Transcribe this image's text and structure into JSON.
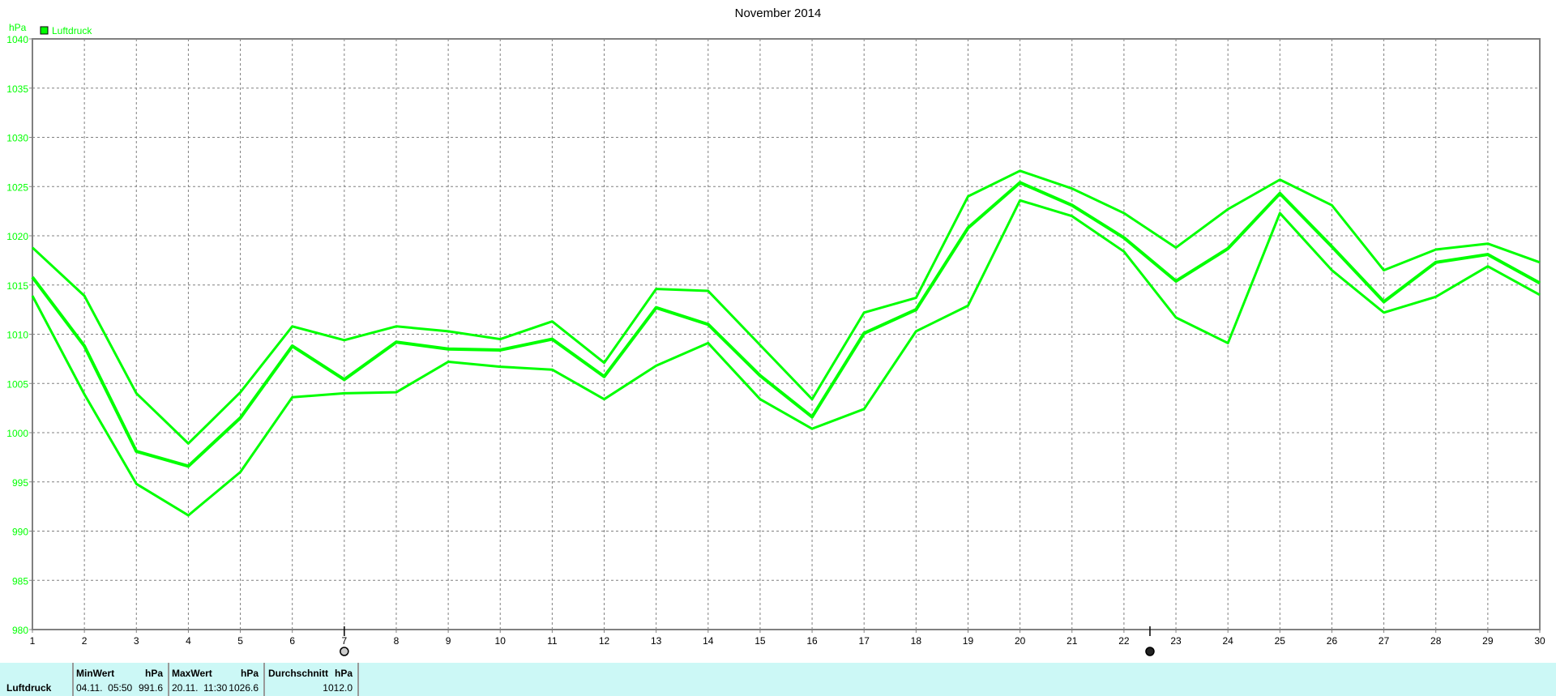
{
  "chart_data": {
    "type": "line",
    "title": "November 2014",
    "ylabel": "hPa",
    "ylim": [
      980,
      1040
    ],
    "yticks": [
      980,
      985,
      990,
      995,
      1000,
      1005,
      1010,
      1015,
      1020,
      1025,
      1030,
      1035,
      1040
    ],
    "x": [
      1,
      2,
      3,
      4,
      5,
      6,
      7,
      8,
      9,
      10,
      11,
      12,
      13,
      14,
      15,
      16,
      17,
      18,
      19,
      20,
      21,
      22,
      23,
      24,
      25,
      26,
      27,
      28,
      29,
      30
    ],
    "xlim": [
      1,
      30
    ],
    "grid": true,
    "legend": {
      "placement": "top-left",
      "entries": [
        "Luftdruck"
      ]
    },
    "color": "#00ff00",
    "series": [
      {
        "values": [
          1018.8,
          1013.9,
          1004.0,
          998.9,
          1004.1,
          1010.8,
          1009.4,
          1010.8,
          1010.3,
          1009.5,
          1011.3,
          1007.1,
          1014.6,
          1014.4,
          1008.9,
          1003.4,
          1012.2,
          1013.7,
          1024.0,
          1026.6,
          1024.8,
          1022.3,
          1018.8,
          1022.7,
          1025.7,
          1023.1,
          1016.5,
          1018.6,
          1019.2,
          1017.3
        ]
      },
      {
        "values": [
          1015.8,
          1008.8,
          998.1,
          996.6,
          1001.5,
          1008.8,
          1005.4,
          1009.2,
          1008.5,
          1008.4,
          1009.5,
          1005.7,
          1012.7,
          1011.0,
          1005.8,
          1001.6,
          1010.1,
          1012.5,
          1020.8,
          1025.4,
          1023.1,
          1019.8,
          1015.4,
          1018.7,
          1024.3,
          1018.9,
          1013.3,
          1017.3,
          1018.1,
          1015.2
        ]
      },
      {
        "values": [
          1013.9,
          1003.9,
          994.8,
          991.6,
          996.0,
          1003.6,
          1004.0,
          1004.1,
          1007.2,
          1006.7,
          1006.4,
          1003.4,
          1006.8,
          1009.1,
          1003.4,
          1000.4,
          1002.4,
          1010.3,
          1012.9,
          1023.6,
          1022.0,
          1018.4,
          1011.7,
          1009.1,
          1022.3,
          1016.5,
          1012.2,
          1013.8,
          1016.9,
          1014.0
        ]
      }
    ],
    "moon_phases": [
      {
        "day": 7,
        "phase": "full-moon"
      },
      {
        "day": 22.5,
        "phase": "new-moon"
      }
    ]
  },
  "stats": {
    "label": "Luftdruck",
    "min": {
      "header": "MinWert",
      "unit": "hPa",
      "time": "04.11.  05:50",
      "value": "991.6"
    },
    "max": {
      "header": "MaxWert",
      "unit": "hPa",
      "time": "20.11.  11:30",
      "value": "1026.6"
    },
    "avg": {
      "header": "Durchschnitt",
      "unit": "hPa",
      "value": "1012.0"
    }
  }
}
